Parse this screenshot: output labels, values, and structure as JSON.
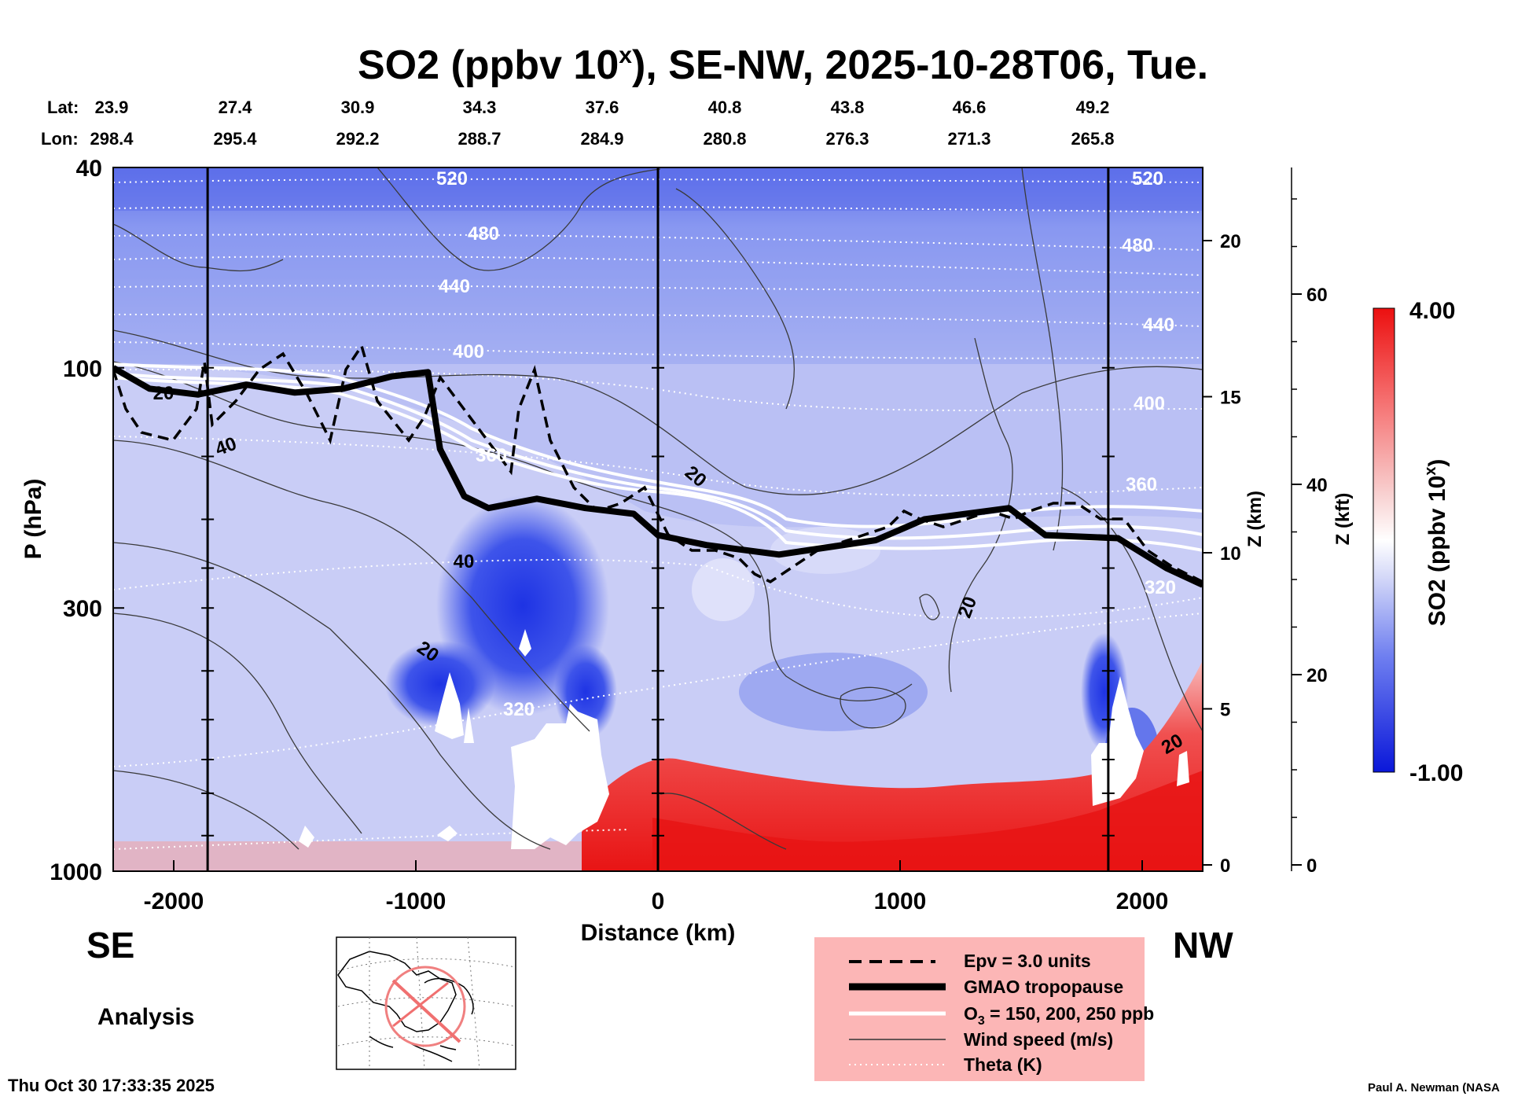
{
  "title_text": "SO2 (ppbv 10",
  "title_sup": "x",
  "title_rest": "), SE-NW, 2025-10-28T06, Tue.",
  "lat_label": "Lat:",
  "lon_label": "Lon:",
  "lat_values": [
    "23.9",
    "27.4",
    "30.9",
    "34.3",
    "37.6",
    "40.8",
    "43.8",
    "46.6",
    "49.2"
  ],
  "lon_values": [
    "298.4",
    "295.4",
    "292.2",
    "288.7",
    "284.9",
    "280.8",
    "276.3",
    "271.3",
    "265.8"
  ],
  "se_label": "SE",
  "nw_label": "NW",
  "analysis_label": "Analysis",
  "timestamp": "Thu Oct 30 17:33:35 2025",
  "credit": "Paul A. Newman (NASA",
  "colors": {
    "bg_blue": "#c9cdf6",
    "deep_blue": "#1f35e6",
    "red": "#ee1b1b",
    "legend_bg": "#fcb6b6"
  },
  "legend": {
    "epv": "Epv = 3.0 units",
    "tropopause": "GMAO tropopause",
    "o3_prefix": "O",
    "o3_sub": "3",
    "o3_rest": " = 150, 200, 250 ppb",
    "wind": "Wind speed (m/s)",
    "theta": "Theta (K)"
  },
  "chart_data": {
    "type": "heatmap",
    "title": "SO2 (ppbv 10^x), SE-NW, 2025-10-28T06, Tue.",
    "xlabel": "Distance (km)",
    "ylabel": "P (hPa)",
    "xlim": [
      -2250,
      2250
    ],
    "ylim": [
      1000,
      40
    ],
    "x_ticks": [
      -2000,
      -1000,
      0,
      1000,
      2000
    ],
    "x_tick_labels": [
      "-2000",
      "-1000",
      "0",
      "1000",
      "2000"
    ],
    "p_ticks": [
      40,
      100,
      300,
      1000
    ],
    "p_tick_labels": [
      "40",
      "100",
      "300",
      "1000"
    ],
    "z_km_label": "Z (km)",
    "z_km_ticks": [
      0,
      5,
      10,
      15,
      20
    ],
    "z_km_tick_labels": [
      "0",
      "5",
      "10",
      "15",
      "20"
    ],
    "z_kft_label": "Z (kft)",
    "z_kft_ticks": [
      0,
      20,
      40,
      60
    ],
    "z_kft_tick_labels": [
      "0",
      "20",
      "40",
      "60"
    ],
    "colorbar": {
      "label": "SO2 (ppbv 10",
      "label_sup": "x",
      "label_end": ")",
      "min": -1.0,
      "max": 4.0,
      "min_label": "-1.00",
      "max_label": "4.00"
    },
    "vertical_markers_km": [
      -1860,
      0,
      1860
    ],
    "theta_contours_K": [
      {
        "value": 520,
        "label": "520"
      },
      {
        "value": 480,
        "label": "480"
      },
      {
        "value": 440,
        "label": "440"
      },
      {
        "value": 400,
        "label": "400"
      },
      {
        "value": 360,
        "label": "360"
      },
      {
        "value": 320,
        "label": "320"
      }
    ],
    "wind_labels": [
      "20",
      "40",
      "40",
      "20",
      "20",
      "20",
      "20"
    ],
    "tropopause_hPa": [
      {
        "x": -2250,
        "p": 100
      },
      {
        "x": -2100,
        "p": 110
      },
      {
        "x": -1900,
        "p": 113
      },
      {
        "x": -1700,
        "p": 108
      },
      {
        "x": -1500,
        "p": 112
      },
      {
        "x": -1300,
        "p": 110
      },
      {
        "x": -1100,
        "p": 104
      },
      {
        "x": -950,
        "p": 102
      },
      {
        "x": -900,
        "p": 145
      },
      {
        "x": -800,
        "p": 180
      },
      {
        "x": -700,
        "p": 190
      },
      {
        "x": -500,
        "p": 182
      },
      {
        "x": -300,
        "p": 190
      },
      {
        "x": -100,
        "p": 195
      },
      {
        "x": 0,
        "p": 215
      },
      {
        "x": 200,
        "p": 225
      },
      {
        "x": 500,
        "p": 235
      },
      {
        "x": 900,
        "p": 220
      },
      {
        "x": 1100,
        "p": 200
      },
      {
        "x": 1450,
        "p": 190
      },
      {
        "x": 1600,
        "p": 215
      },
      {
        "x": 1900,
        "p": 218
      },
      {
        "x": 2100,
        "p": 250
      },
      {
        "x": 2250,
        "p": 270
      }
    ]
  }
}
